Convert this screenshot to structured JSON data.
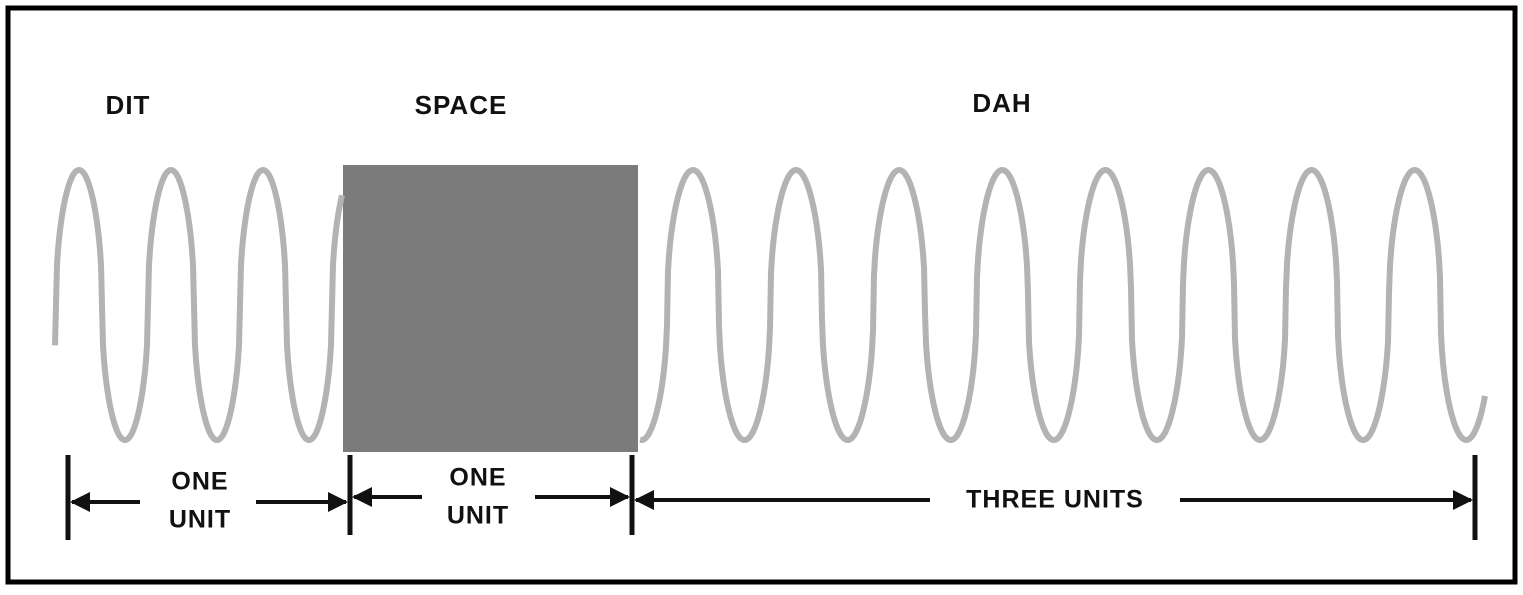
{
  "sections": [
    {
      "label": "DIT",
      "duration": [
        "ONE",
        "UNIT"
      ]
    },
    {
      "label": "SPACE",
      "duration": [
        "ONE",
        "UNIT"
      ]
    },
    {
      "label": "DAH",
      "duration": "THREE UNITS"
    }
  ]
}
